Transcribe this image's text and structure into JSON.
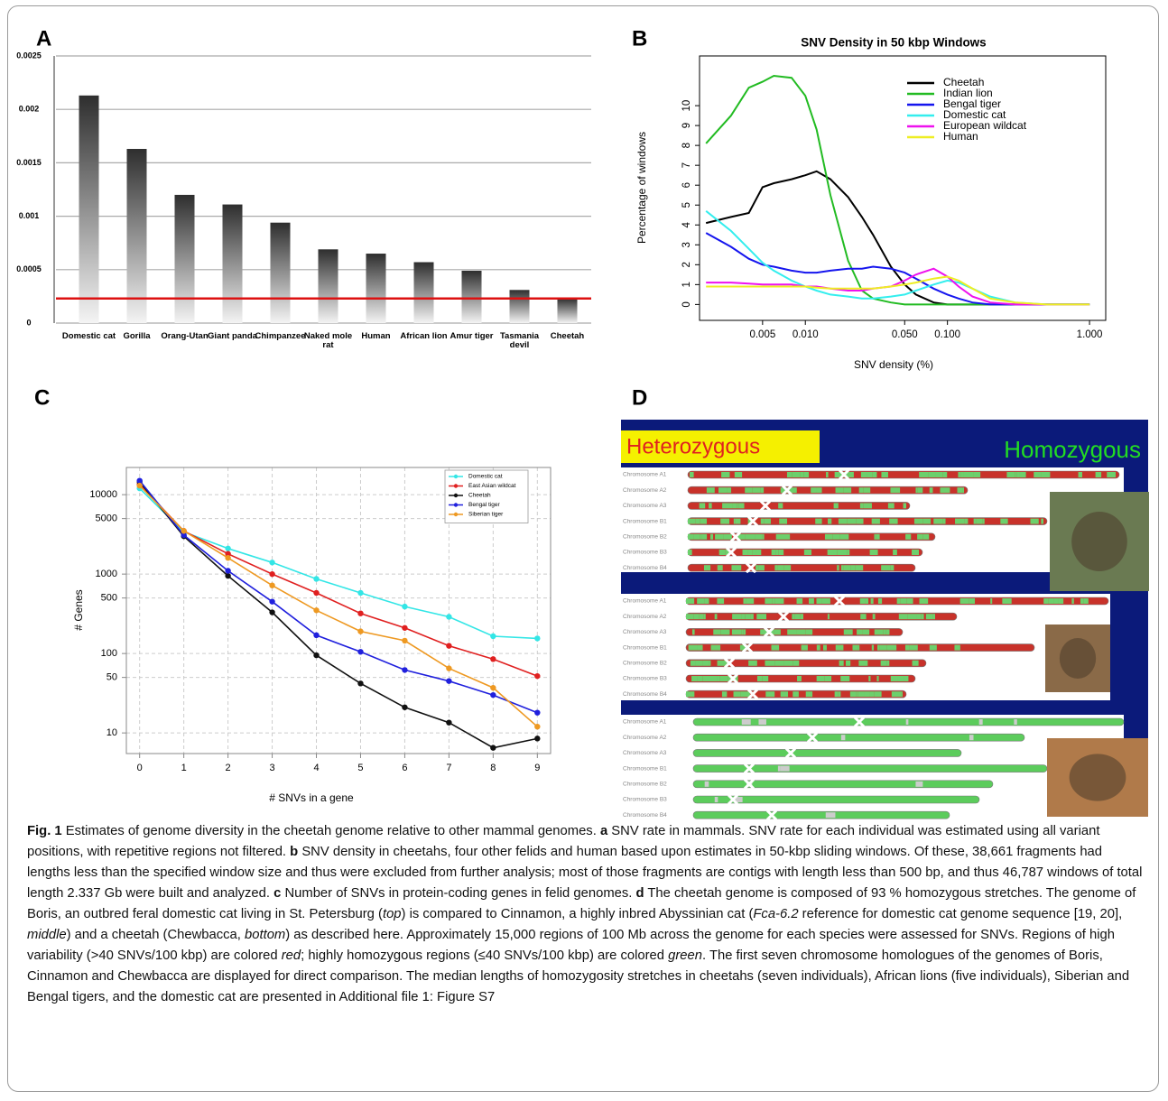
{
  "chart_data": [
    {
      "type": "bar",
      "panel": "A",
      "categories": [
        "Domestic cat",
        "Gorilla",
        "Orang-Utan",
        "Giant panda",
        "Chimpanzee",
        "Naked mole rat",
        "Human",
        "African lion",
        "Amur tiger",
        "Tasmania devil",
        "Cheetah"
      ],
      "values": [
        0.00213,
        0.00163,
        0.0012,
        0.00111,
        0.00094,
        0.00069,
        0.00065,
        0.00057,
        0.00049,
        0.00031,
        0.00023
      ],
      "ylim": [
        0,
        0.0025
      ],
      "yticks": [
        0,
        0.0005,
        0.001,
        0.0015,
        0.002,
        0.0025
      ],
      "grid": true,
      "reference_line": 0.00023,
      "reference_color": "#dd1111"
    },
    {
      "type": "line",
      "panel": "B",
      "title": "SNV Density in 50 kbp Windows",
      "xlabel": "SNV density (%)",
      "ylabel": "Percentage of windows",
      "xscale": "log",
      "x": [
        0.002,
        0.003,
        0.004,
        0.005,
        0.006,
        0.008,
        0.01,
        0.012,
        0.015,
        0.02,
        0.025,
        0.03,
        0.04,
        0.05,
        0.06,
        0.08,
        0.1,
        0.12,
        0.15,
        0.2,
        0.3,
        0.5,
        1
      ],
      "series": [
        {
          "name": "Cheetah",
          "color": "#000000",
          "values": [
            4.1,
            4.4,
            4.6,
            5.9,
            6.1,
            6.3,
            6.5,
            6.7,
            6.3,
            5.4,
            4.4,
            3.5,
            1.9,
            1.0,
            0.5,
            0.1,
            0,
            0,
            0,
            0,
            0,
            0,
            0
          ]
        },
        {
          "name": "Indian lion",
          "color": "#22bb22",
          "values": [
            8.1,
            9.5,
            10.9,
            11.2,
            11.5,
            11.4,
            10.5,
            8.8,
            5.5,
            2.2,
            0.7,
            0.3,
            0.1,
            0,
            0,
            0,
            0,
            0,
            0,
            0,
            0,
            0,
            0
          ]
        },
        {
          "name": "Bengal tiger",
          "color": "#1515ee",
          "values": [
            3.6,
            2.9,
            2.3,
            2.0,
            1.9,
            1.7,
            1.6,
            1.6,
            1.7,
            1.8,
            1.8,
            1.9,
            1.8,
            1.6,
            1.3,
            0.8,
            0.5,
            0.3,
            0.1,
            0,
            0,
            0,
            0
          ]
        },
        {
          "name": "Domestic cat",
          "color": "#33eeee",
          "values": [
            4.7,
            3.7,
            2.8,
            2.1,
            1.7,
            1.2,
            0.9,
            0.7,
            0.5,
            0.4,
            0.3,
            0.3,
            0.4,
            0.5,
            0.7,
            1.0,
            1.2,
            1.1,
            0.8,
            0.4,
            0.1,
            0,
            0
          ]
        },
        {
          "name": "European wildcat",
          "color": "#ee11ee",
          "values": [
            1.1,
            1.1,
            1.05,
            1.0,
            1.0,
            1.0,
            0.9,
            0.9,
            0.8,
            0.7,
            0.7,
            0.8,
            0.9,
            1.2,
            1.5,
            1.8,
            1.4,
            0.9,
            0.4,
            0.1,
            0,
            0,
            0
          ]
        },
        {
          "name": "Human",
          "color": "#eeee22",
          "values": [
            0.9,
            0.9,
            0.9,
            0.9,
            0.9,
            0.9,
            0.9,
            0.85,
            0.8,
            0.8,
            0.8,
            0.8,
            0.9,
            1.0,
            1.1,
            1.3,
            1.4,
            1.2,
            0.8,
            0.3,
            0.1,
            0,
            0
          ]
        }
      ],
      "xlim": [
        0.0018,
        1.3
      ],
      "xticks": [
        0.005,
        {
          "value": 0.01,
          "label": "0.010"
        },
        {
          "value": 0.05,
          "label": "0.050"
        },
        {
          "value": 0.1,
          "label": "0.100"
        },
        {
          "value": 1,
          "label": "1.000"
        }
      ],
      "ylim": [
        -0.8,
        12.5
      ],
      "yticks": [
        0,
        1,
        2,
        3,
        4,
        5,
        6,
        7,
        8,
        9,
        10
      ],
      "grid": false,
      "legend": "top-right"
    },
    {
      "type": "line",
      "panel": "C",
      "xlabel": "# SNVs in a gene",
      "ylabel": "# Genes",
      "yscale": "log",
      "markers": true,
      "x": [
        0,
        1,
        2,
        3,
        4,
        5,
        6,
        7,
        8,
        9
      ],
      "series": [
        {
          "name": "Domestic cat",
          "color": "#33e6e6",
          "values": [
            12000,
            3400,
            2100,
            1400,
            870,
            580,
            390,
            290,
            165,
            155
          ]
        },
        {
          "name": "East Asian wildcat",
          "color": "#e02020",
          "values": [
            13500,
            3500,
            1800,
            1000,
            580,
            320,
            210,
            125,
            85,
            52
          ]
        },
        {
          "name": "Cheetah",
          "color": "#111111",
          "values": [
            14500,
            3000,
            950,
            330,
            95,
            42,
            21,
            13.5,
            6.5,
            8.5
          ]
        },
        {
          "name": "Bengal tiger",
          "color": "#2020dd",
          "values": [
            15000,
            3100,
            1100,
            450,
            170,
            105,
            62,
            45,
            30,
            18
          ]
        },
        {
          "name": "Siberian tiger",
          "color": "#ee9922",
          "values": [
            13000,
            3500,
            1600,
            720,
            350,
            190,
            145,
            65,
            37,
            12
          ]
        }
      ],
      "xlim": [
        -0.3,
        9.3
      ],
      "xticks": [
        0,
        1,
        2,
        3,
        4,
        5,
        6,
        7,
        8,
        9
      ],
      "ylim": [
        5.5,
        22000
      ],
      "yticks": [
        10,
        50,
        100,
        500,
        1000,
        5000,
        10000
      ],
      "grid": true,
      "legend": "top-right"
    }
  ],
  "panel_d": {
    "panel": "D",
    "labels": [
      "Heterozygous",
      "Homozygous"
    ],
    "chromosomes": [
      "Chromosome A1",
      "Chromosome A2",
      "Chromosome A3",
      "Chromosome B1",
      "Chromosome B2",
      "Chromosome B3",
      "Chromosome B4"
    ]
  },
  "caption": {
    "runs": [
      "Fig. 1",
      " Estimates of genome diversity in the cheetah genome relative to other mammal genomes. ",
      "a",
      " SNV rate in mammals. SNV rate for each individual was estimated using all variant positions, with repetitive regions not filtered. ",
      "b",
      " SNV density in cheetahs, four other felids and human based upon estimates in 50-kbp sliding windows. Of these, 38,661 fragments had lengths less than the specified window size and thus were excluded from further analysis; most of those fragments are contigs with length less than 500 bp, and thus 46,787 windows of total length 2.337 Gb were built and analyzed. ",
      "c",
      " Number of SNVs in protein-coding genes in felid genomes. ",
      "d",
      " The cheetah genome is composed of 93 % homozygous stretches. The genome of Boris, an outbred feral domestic cat living in St. Petersburg (",
      "top",
      ") is compared to Cinnamon, a highly inbred Abyssinian cat (",
      "Fca-6.2",
      " reference for domestic cat genome sequence [19, 20], ",
      "middle",
      ") and a cheetah (Chewbacca, ",
      "bottom",
      ") as described here. Approximately 15,000 regions of 100 Mb across the genome for each species were assessed for SNVs. Regions of high variability (>40 SNVs/100 kbp) are colored ",
      "red",
      "; highly homozygous regions (≤40 SNVs/100 kbp) are colored ",
      "green",
      ". The first seven chromosome homologues of the genomes of Boris, Cinnamon and Chewbacca are displayed for direct comparison. The median lengths of homozygosity stretches in cheetahs (seven individuals), African lions (five individuals), Siberian and Bengal tigers, and the domestic cat are presented in Additional file 1: Figure S7"
    ]
  }
}
